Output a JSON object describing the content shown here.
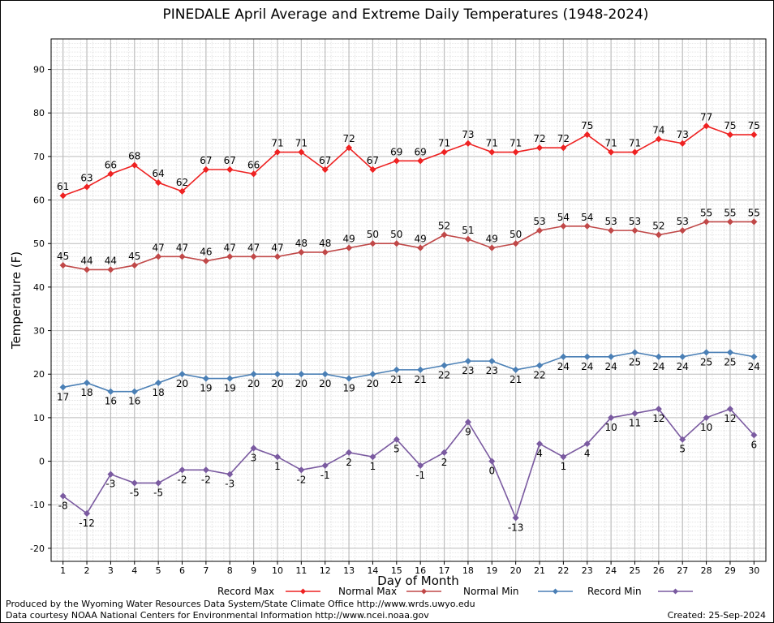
{
  "footer": {
    "produced_by": "Produced by the Wyoming Water Resources Data System/State Climate Office http://www.wrds.uwyo.edu",
    "courtesy": "Data courtesy NOAA National Centers for Environmental Information http://www.ncei.noaa.gov",
    "created": "Created: 25-Sep-2024"
  },
  "chart_data": {
    "type": "line",
    "title": "PINEDALE April Average and Extreme Daily Temperatures (1948-2024)",
    "xlabel": "Day of Month",
    "ylabel": "Temperature (F)",
    "ylim": [
      -23,
      97
    ],
    "xlim": [
      0.5,
      30.5
    ],
    "yticks": [
      -20,
      -10,
      0,
      10,
      20,
      30,
      40,
      50,
      60,
      70,
      80,
      90
    ],
    "x": [
      1,
      2,
      3,
      4,
      5,
      6,
      7,
      8,
      9,
      10,
      11,
      12,
      13,
      14,
      15,
      16,
      17,
      18,
      19,
      20,
      21,
      22,
      23,
      24,
      25,
      26,
      27,
      28,
      29,
      30
    ],
    "grid": true,
    "legend_placement": "bottom",
    "series": [
      {
        "name": "Record Max",
        "color": "#ee2222",
        "label_pos": "above",
        "values": [
          61,
          63,
          66,
          68,
          64,
          62,
          67,
          67,
          66,
          71,
          71,
          67,
          72,
          67,
          69,
          69,
          71,
          73,
          71,
          71,
          72,
          72,
          75,
          71,
          71,
          74,
          73,
          77,
          75,
          75
        ]
      },
      {
        "name": "Normal Max",
        "color": "#c04848",
        "label_pos": "above",
        "values": [
          45,
          44,
          44,
          45,
          47,
          47,
          46,
          47,
          47,
          47,
          48,
          48,
          49,
          50,
          50,
          49,
          52,
          51,
          49,
          50,
          53,
          54,
          54,
          53,
          53,
          52,
          53,
          55,
          55,
          55
        ]
      },
      {
        "name": "Normal Min",
        "color": "#4a7fb5",
        "label_pos": "below",
        "values": [
          17,
          18,
          16,
          16,
          18,
          20,
          19,
          19,
          20,
          20,
          20,
          20,
          19,
          20,
          21,
          21,
          22,
          23,
          23,
          21,
          22,
          24,
          24,
          24,
          25,
          24,
          24,
          25,
          25,
          24
        ]
      },
      {
        "name": "Record Min",
        "color": "#7a5aa0",
        "label_pos": "below",
        "values": [
          -8,
          -12,
          -3,
          -5,
          -5,
          -2,
          -2,
          -3,
          3,
          1,
          -2,
          -1,
          2,
          1,
          5,
          -1,
          2,
          9,
          0,
          -13,
          4,
          1,
          4,
          10,
          11,
          12,
          5,
          10,
          12,
          6
        ]
      }
    ]
  }
}
